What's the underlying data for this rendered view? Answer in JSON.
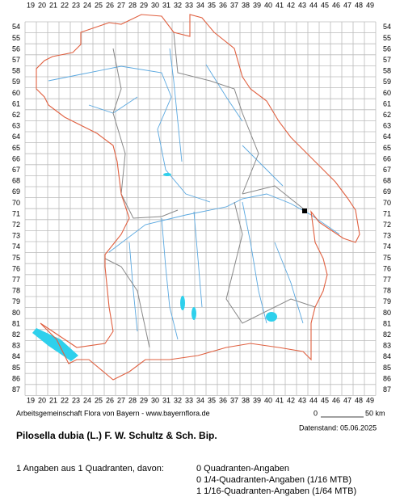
{
  "grid": {
    "columns": [
      19,
      20,
      21,
      22,
      23,
      24,
      25,
      26,
      27,
      28,
      29,
      30,
      31,
      32,
      33,
      34,
      35,
      36,
      37,
      38,
      39,
      40,
      41,
      42,
      43,
      44,
      45,
      46,
      47,
      48,
      49
    ],
    "rows": [
      54,
      55,
      56,
      57,
      58,
      59,
      60,
      61,
      62,
      63,
      64,
      65,
      66,
      67,
      68,
      69,
      70,
      71,
      72,
      73,
      74,
      75,
      76,
      77,
      78,
      79,
      80,
      81,
      82,
      83,
      84,
      85,
      86,
      87
    ]
  },
  "occurrences": [
    {
      "column": 43,
      "row": 71
    }
  ],
  "footer": {
    "credit": "Arbeitsgemeinschaft Flora von Bayern - www.bayernflora.de",
    "scale_start": "0",
    "scale_end": "50 km",
    "date": "Datenstand: 05.06.2025"
  },
  "species": "Pilosella dubia (L.) F. W. Schultz & Sch. Bip.",
  "summary": {
    "total": "1 Angaben aus 1 Quadranten, davon:",
    "lines": [
      "0 Quadranten-Angaben",
      "0 1/4-Quadranten-Angaben (1/16 MTB)",
      "1 1/16-Quadranten-Angaben (1/64 MTB)"
    ]
  }
}
